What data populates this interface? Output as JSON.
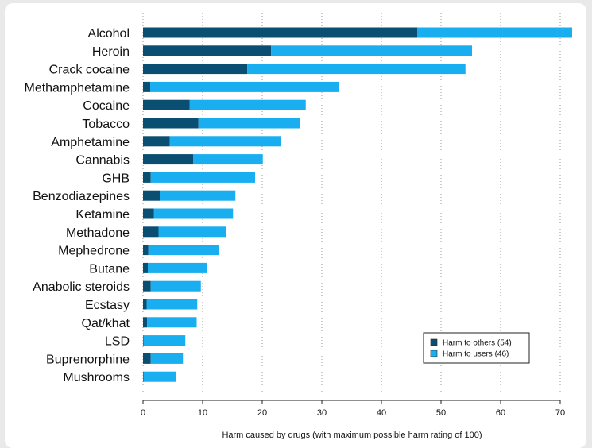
{
  "chart_data": {
    "type": "bar",
    "orientation": "horizontal",
    "stacked": true,
    "title": "",
    "xlabel": "Harm caused by drugs (with maximum possible harm rating of 100)",
    "ylabel": "",
    "xlim": [
      0,
      72
    ],
    "xticks": [
      0,
      10,
      20,
      30,
      40,
      50,
      60,
      70
    ],
    "grid": "vertical dotted",
    "legend_position": "bottom-right",
    "categories": [
      "Alcohol",
      "Heroin",
      "Crack cocaine",
      "Methamphetamine",
      "Cocaine",
      "Tobacco",
      "Amphetamine",
      "Cannabis",
      "GHB",
      "Benzodiazepines",
      "Ketamine",
      "Methadone",
      "Mephedrone",
      "Butane",
      "Anabolic steroids",
      "Ecstasy",
      "Qat/khat",
      "LSD",
      "Buprenorphine",
      "Mushrooms"
    ],
    "series": [
      {
        "name": "Harm to others (54)",
        "color": "#0a4f72",
        "values": [
          46,
          21.5,
          17.5,
          1.2,
          7.8,
          9.3,
          4.5,
          8.4,
          1.3,
          2.8,
          1.8,
          2.6,
          0.9,
          0.8,
          1.3,
          0.6,
          0.7,
          0.1,
          1.3,
          0.1
        ]
      },
      {
        "name": "Harm to users (46)",
        "color": "#18aef0",
        "values": [
          26,
          33.7,
          36.6,
          31.6,
          19.5,
          17.1,
          18.7,
          11.7,
          17.5,
          12.7,
          13.3,
          11.4,
          11.9,
          10.0,
          8.4,
          8.5,
          8.3,
          7.0,
          5.4,
          5.4
        ]
      }
    ]
  }
}
